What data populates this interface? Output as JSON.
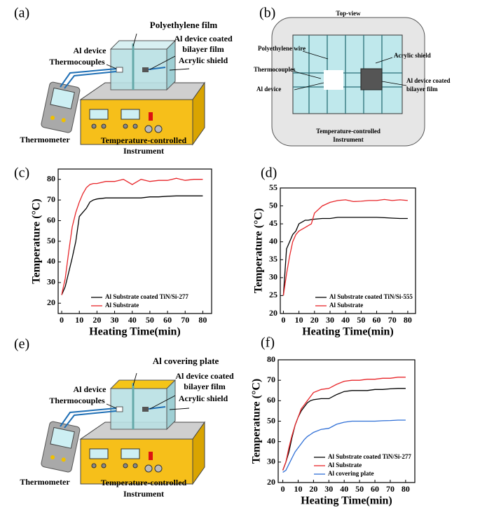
{
  "chart_data": [
    {
      "type": "line",
      "panel": "(c)",
      "xlabel": "Heating Time(min)",
      "ylabel": "Temperature (°C)",
      "x": [
        0,
        2,
        4,
        6,
        8,
        10,
        12,
        14,
        16,
        18,
        20,
        25,
        30,
        35,
        40,
        45,
        50,
        55,
        60,
        65,
        70,
        75,
        80
      ],
      "series": [
        {
          "name": "Al Substrate coated TiN/Si-277",
          "color": "#000000",
          "values": [
            24,
            28,
            35,
            42,
            50,
            62,
            64,
            66,
            69,
            70,
            70.5,
            71,
            71,
            71,
            71,
            71,
            71.5,
            71.5,
            71.8,
            72,
            72,
            72,
            72
          ]
        },
        {
          "name": "Al Substrate",
          "color": "#e8262a",
          "values": [
            24,
            32,
            45,
            57,
            64,
            69,
            73,
            76,
            77.5,
            78,
            78,
            79,
            79,
            80,
            77.5,
            80,
            79,
            79.5,
            79.5,
            80.5,
            79.5,
            80,
            80
          ]
        }
      ],
      "xlim": [
        -2,
        85
      ],
      "ylim": [
        15,
        85
      ],
      "xticks": [
        0,
        10,
        20,
        30,
        40,
        50,
        60,
        70,
        80
      ],
      "yticks": [
        20,
        30,
        40,
        50,
        60,
        70,
        80
      ],
      "legend": "lower right"
    },
    {
      "type": "line",
      "panel": "(d)",
      "xlabel": "Heating Time(min)",
      "ylabel": "Temperature (°C)",
      "x": [
        0,
        2,
        4,
        6,
        8,
        10,
        12,
        14,
        16,
        18,
        20,
        25,
        30,
        35,
        40,
        45,
        50,
        55,
        60,
        65,
        70,
        75,
        80
      ],
      "series": [
        {
          "name": "Al Substrate coated TiN/Si-555",
          "color": "#000000",
          "values": [
            25,
            38,
            40,
            42,
            43,
            45,
            45.5,
            46,
            46,
            46.2,
            46.3,
            46.5,
            46.5,
            46.8,
            46.8,
            46.8,
            46.8,
            46.8,
            46.8,
            46.7,
            46.6,
            46.5,
            46.5
          ]
        },
        {
          "name": "Al Substrate",
          "color": "#e8262a",
          "values": [
            25,
            31,
            36,
            40,
            42,
            43,
            43.5,
            44,
            44.5,
            45,
            48,
            50,
            51,
            51.5,
            51.7,
            51.2,
            51.3,
            51.5,
            51.5,
            51.8,
            51.5,
            51.7,
            51.5
          ]
        }
      ],
      "xlim": [
        -2,
        85
      ],
      "ylim": [
        20,
        55
      ],
      "xticks": [
        0,
        10,
        20,
        30,
        40,
        50,
        60,
        70,
        80
      ],
      "yticks": [
        20,
        25,
        30,
        35,
        40,
        45,
        50,
        55
      ],
      "legend": "lower right"
    },
    {
      "type": "line",
      "panel": "(f)",
      "xlabel": "Heating Time(min)",
      "ylabel": "Temperature (°C)",
      "x": [
        0,
        2,
        4,
        6,
        8,
        10,
        12,
        14,
        16,
        18,
        20,
        25,
        30,
        35,
        40,
        45,
        50,
        55,
        60,
        65,
        70,
        75,
        80
      ],
      "series": [
        {
          "name": "Al Substrate coated TiN/Si-277",
          "color": "#000000",
          "values": [
            26,
            30,
            35,
            42,
            48,
            52,
            55,
            57,
            59,
            60,
            60.5,
            61,
            61,
            63,
            64.5,
            65,
            65,
            65,
            65.5,
            65.5,
            65.8,
            66,
            66
          ]
        },
        {
          "name": "Al Substrate",
          "color": "#e8262a",
          "values": [
            26,
            30,
            37,
            43,
            48,
            52,
            56,
            58,
            60,
            62,
            64,
            65.5,
            66,
            68,
            69.5,
            70,
            70,
            70.5,
            70.5,
            71,
            71,
            71.5,
            71.5
          ]
        },
        {
          "name": "Al covering plate",
          "color": "#2f6fd6",
          "values": [
            25,
            26,
            29,
            32,
            35,
            37,
            39,
            41,
            42.5,
            43.5,
            44.5,
            46,
            46.5,
            48.5,
            49.5,
            50,
            50,
            50,
            50,
            50.2,
            50.3,
            50.5,
            50.5
          ]
        }
      ],
      "xlim": [
        -3,
        86
      ],
      "ylim": [
        20,
        80
      ],
      "xticks": [
        0,
        10,
        20,
        30,
        40,
        50,
        60,
        70,
        80
      ],
      "yticks": [
        20,
        30,
        40,
        50,
        60,
        70,
        80
      ],
      "legend": "lower right"
    }
  ],
  "diagrams": [
    {
      "panel": "(a)",
      "film": "Polyethylene film",
      "coated": [
        "Al device coated",
        "bilayer film"
      ],
      "device": "Al device",
      "thermocouples": "Thermocouples",
      "shield": "Acrylic shield",
      "thermometer": "Thermometer",
      "instrument": [
        "Temperature-controlled",
        "Instrument"
      ]
    },
    {
      "panel": "(b)",
      "view": "Top-view",
      "wire": "Polyethylene wire",
      "shield": "Acrylic shield",
      "thermocouples": "Thermocouples",
      "device": "Al device",
      "coated": [
        "Al device coated",
        "bilayer film"
      ],
      "instrument": [
        "Temperature-controlled",
        "Instrument"
      ]
    },
    {
      "panel": "(e)",
      "plate": "Al  covering plate",
      "coated": [
        "Al device coated",
        "bilayer film"
      ],
      "device": "Al device",
      "thermocouples": "Thermocouples",
      "shield": "Acrylic shield",
      "thermometer": "Thermometer",
      "instrument": [
        "Temperature-controlled",
        "Instrument"
      ]
    }
  ]
}
